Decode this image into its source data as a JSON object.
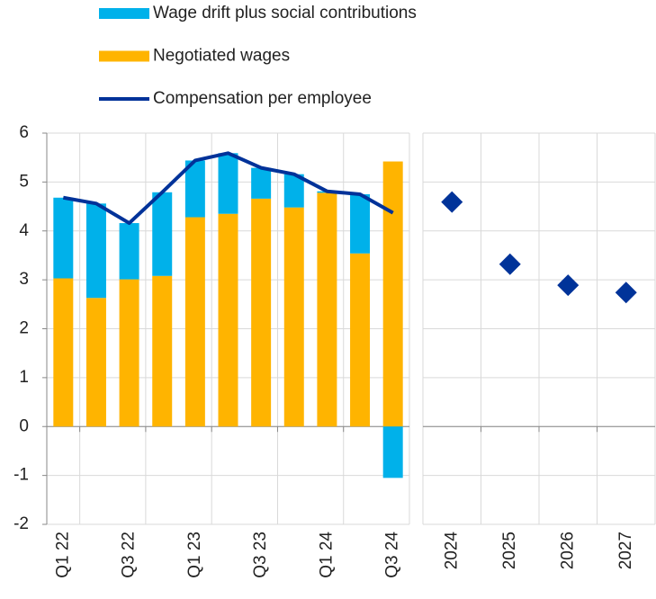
{
  "chart_data": [
    {
      "type": "bar",
      "categories": [
        "Q1 22",
        null,
        "Q3 22",
        null,
        "Q1 23",
        null,
        "Q3 23",
        null,
        "Q1 24",
        null,
        "Q3 24"
      ],
      "series": [
        {
          "name": "Wage drift plus social contributions",
          "color": "#00b1ea",
          "kind": "bar",
          "values": [
            1.65,
            1.93,
            1.15,
            1.71,
            1.16,
            1.24,
            0.63,
            0.68,
            0.03,
            1.21,
            -1.05
          ]
        },
        {
          "name": "Negotiated wages",
          "color": "#ffb400",
          "kind": "bar",
          "values": [
            3.03,
            2.63,
            3.01,
            3.08,
            4.28,
            4.35,
            4.66,
            4.48,
            4.78,
            3.54,
            5.42
          ]
        },
        {
          "name": "Compensation per employee",
          "color": "#003299",
          "kind": "line",
          "values": [
            4.68,
            4.56,
            4.16,
            4.79,
            5.44,
            5.59,
            5.29,
            5.16,
            4.81,
            4.75,
            4.37
          ]
        }
      ],
      "ylim": [
        -2,
        6
      ],
      "yticks": [
        -2,
        -1,
        0,
        1,
        2,
        3,
        4,
        5,
        6
      ],
      "grid": true,
      "stacked": true
    },
    {
      "type": "scatter",
      "categories": [
        "2024",
        "2025",
        "2026",
        "2027"
      ],
      "series": [
        {
          "color": "#003399",
          "values": [
            4.59,
            3.32,
            2.89,
            2.74
          ]
        }
      ],
      "ylim": [
        -2,
        6
      ],
      "yticks": [
        -2,
        -1,
        0,
        1,
        2,
        3,
        4,
        5,
        6
      ],
      "grid": true
    }
  ]
}
